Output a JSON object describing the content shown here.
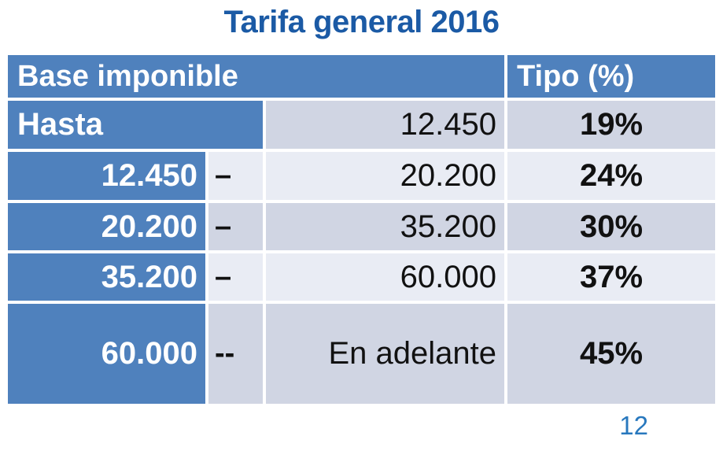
{
  "title": "Tarifa general 2016",
  "page_number": "12",
  "colors": {
    "header_blue": "#4f81bd",
    "band_dark": "#d0d5e3",
    "band_light": "#e9ecf4",
    "title_blue": "#1b5aa5",
    "page_number_blue": "#2878be",
    "text_black": "#111111"
  },
  "table": {
    "headers": {
      "base": "Base imponible",
      "tipo": "Tipo (%)"
    },
    "rows": [
      {
        "from": "Hasta",
        "dash": "",
        "to": "12.450",
        "rate": "19%"
      },
      {
        "from": "12.450",
        "dash": "–",
        "to": "20.200",
        "rate": "24%"
      },
      {
        "from": "20.200",
        "dash": "–",
        "to": "35.200",
        "rate": "30%"
      },
      {
        "from": "35.200",
        "dash": "–",
        "to": "60.000",
        "rate": "37%"
      },
      {
        "from": "60.000",
        "dash": "--",
        "to": "En adelante",
        "rate": "45%"
      }
    ]
  }
}
